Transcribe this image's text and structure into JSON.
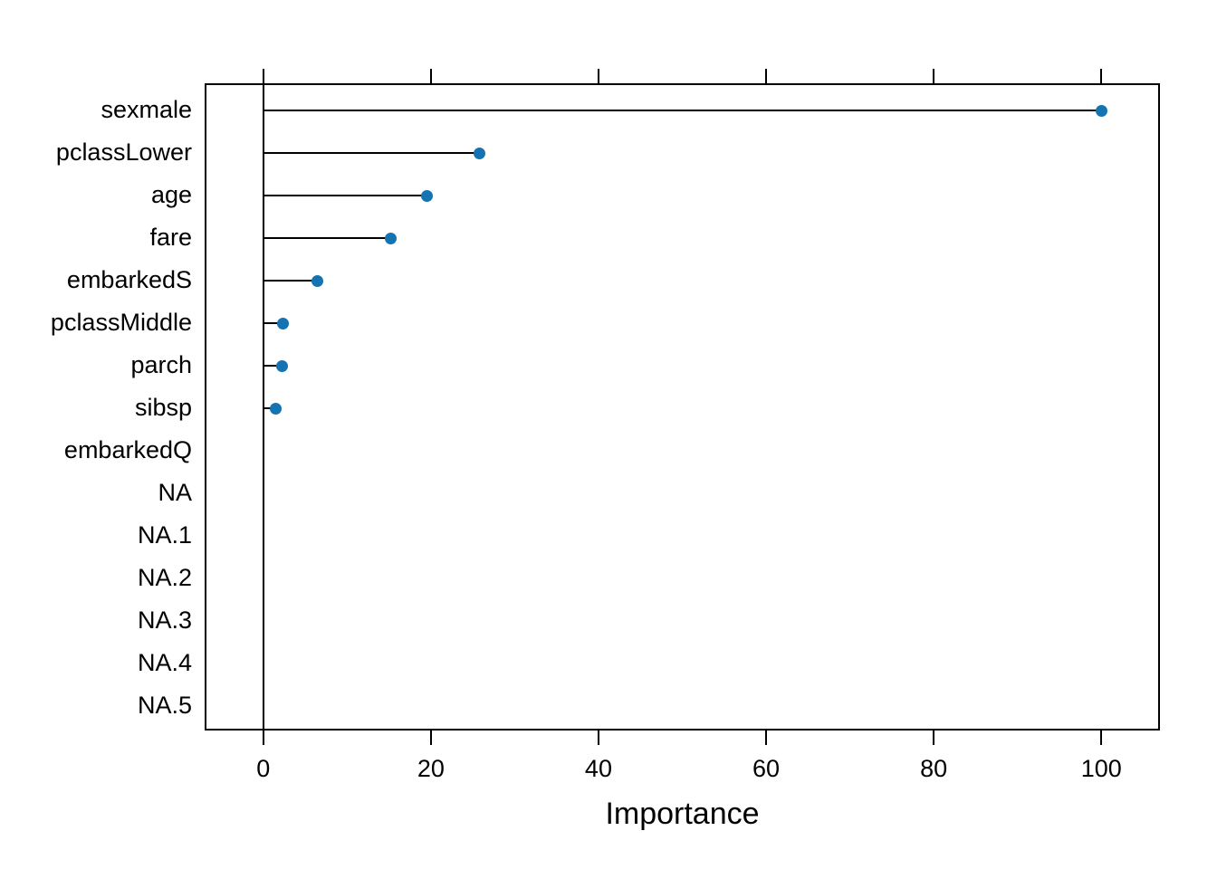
{
  "chart_data": {
    "type": "scatter",
    "subtype": "cleveland-dotchart-lollipop",
    "title": "",
    "xlabel": "Importance",
    "ylabel": "",
    "categories": [
      "sexmale",
      "pclassLower",
      "age",
      "fare",
      "embarkedS",
      "pclassMiddle",
      "parch",
      "sibsp",
      "embarkedQ",
      "NA",
      "NA.1",
      "NA.2",
      "NA.3",
      "NA.4",
      "NA.5"
    ],
    "values": [
      100,
      25.8,
      19.5,
      15.2,
      6.5,
      2.4,
      2.2,
      1.5,
      null,
      null,
      null,
      null,
      null,
      null,
      null
    ],
    "x_ticks": [
      0,
      20,
      40,
      60,
      80,
      100
    ],
    "xlim": [
      -7,
      107
    ],
    "grid": false,
    "legend_position": "none",
    "zero_reference_line": true,
    "tick_sides": [
      "top",
      "bottom"
    ],
    "colors": {
      "point": "#1673B1",
      "line": "#000000",
      "text": "#000000",
      "background": "#FFFFFF"
    }
  }
}
